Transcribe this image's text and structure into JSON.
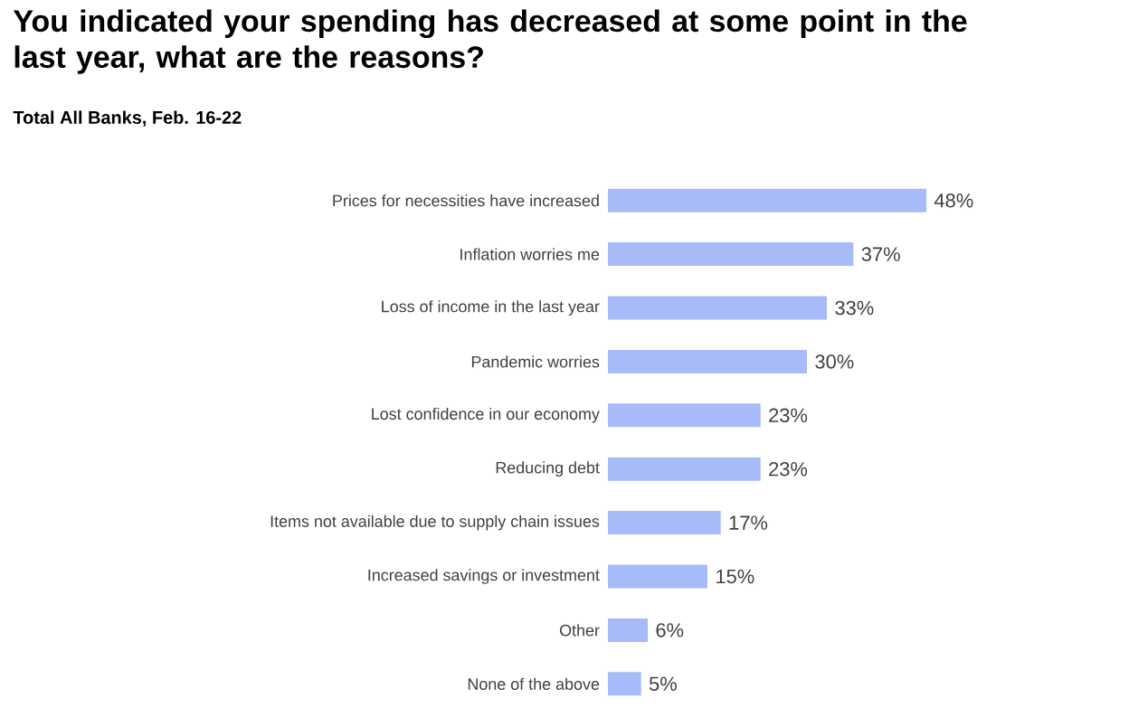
{
  "chart_data": {
    "type": "bar",
    "orientation": "horizontal",
    "title": "You indicated your spending has decreased at some point in the last year, what are the reasons?",
    "subtitle": "Total All Banks, Feb. 16-22",
    "categories": [
      "Prices for necessities have increased",
      "Inflation worries me",
      "Loss of income in the last year",
      "Pandemic worries",
      "Lost confidence in our economy",
      "Reducing debt",
      "Items not available due to supply chain issues",
      "Increased savings or investment",
      "Other",
      "None of the above"
    ],
    "values": [
      48,
      37,
      33,
      30,
      23,
      23,
      17,
      15,
      6,
      5
    ],
    "value_labels": [
      "48%",
      "37%",
      "33%",
      "30%",
      "23%",
      "23%",
      "17%",
      "15%",
      "6%",
      "5%"
    ],
    "color": "#a6bbf7"
  }
}
